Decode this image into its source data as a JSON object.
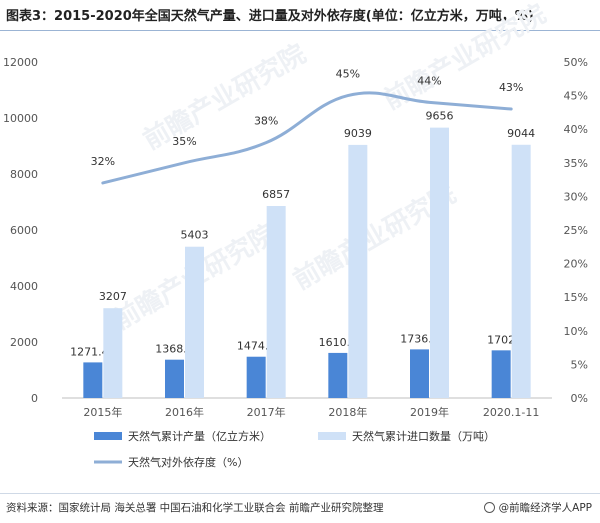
{
  "header": {
    "title": "图表3：2015-2020年全国天然气产量、进口量及对外依存度(单位：亿立方米，万吨，%)"
  },
  "footer": {
    "source": "资料来源：国家统计局 海关总署 中国石油和化学工业联合会 前瞻产业研究院整理",
    "brand": "@前瞻经济学人APP"
  },
  "watermark": {
    "text": "前瞻产业研究院"
  },
  "colors": {
    "production": "#4a86d6",
    "imports": "#cfe1f7",
    "dependence": "#8eaed6",
    "axis_text": "#555555",
    "gridline": "#e6e6e6"
  },
  "chart_data": {
    "type": "bar",
    "categories": [
      "2015年",
      "2016年",
      "2017年",
      "2018年",
      "2019年",
      "2020.1-11"
    ],
    "series": [
      {
        "name": "天然气累计产量（亿立方米）",
        "type": "bar",
        "axis": "left",
        "values": [
          1271.41,
          1368.3,
          1474.2,
          1610.2,
          1736.2,
          1702
        ],
        "labels": [
          "1271.41",
          "1368.3",
          "1474.2",
          "1610.2",
          "1736.2",
          "1702"
        ]
      },
      {
        "name": "天然气累计进口数量（万吨）",
        "type": "bar",
        "axis": "left",
        "values": [
          3207,
          5403,
          6857,
          9039,
          9656,
          9044
        ],
        "labels": [
          "3207",
          "5403",
          "6857",
          "9039",
          "9656",
          "9044"
        ]
      },
      {
        "name": "天然气对外依存度（%）",
        "type": "line",
        "axis": "right",
        "values": [
          32,
          35,
          38,
          45,
          44,
          43
        ],
        "labels": [
          "32%",
          "35%",
          "38%",
          "45%",
          "44%",
          "43%"
        ]
      }
    ],
    "y_left": {
      "range": [
        0,
        12000
      ],
      "ticks": [
        "0",
        "2000",
        "4000",
        "6000",
        "8000",
        "10000",
        "12000"
      ]
    },
    "y_right": {
      "range": [
        0,
        50
      ],
      "ticks": [
        "0%",
        "5%",
        "10%",
        "15%",
        "20%",
        "25%",
        "30%",
        "35%",
        "40%",
        "45%",
        "50%"
      ]
    },
    "legend_position": "bottom",
    "grid": false
  }
}
